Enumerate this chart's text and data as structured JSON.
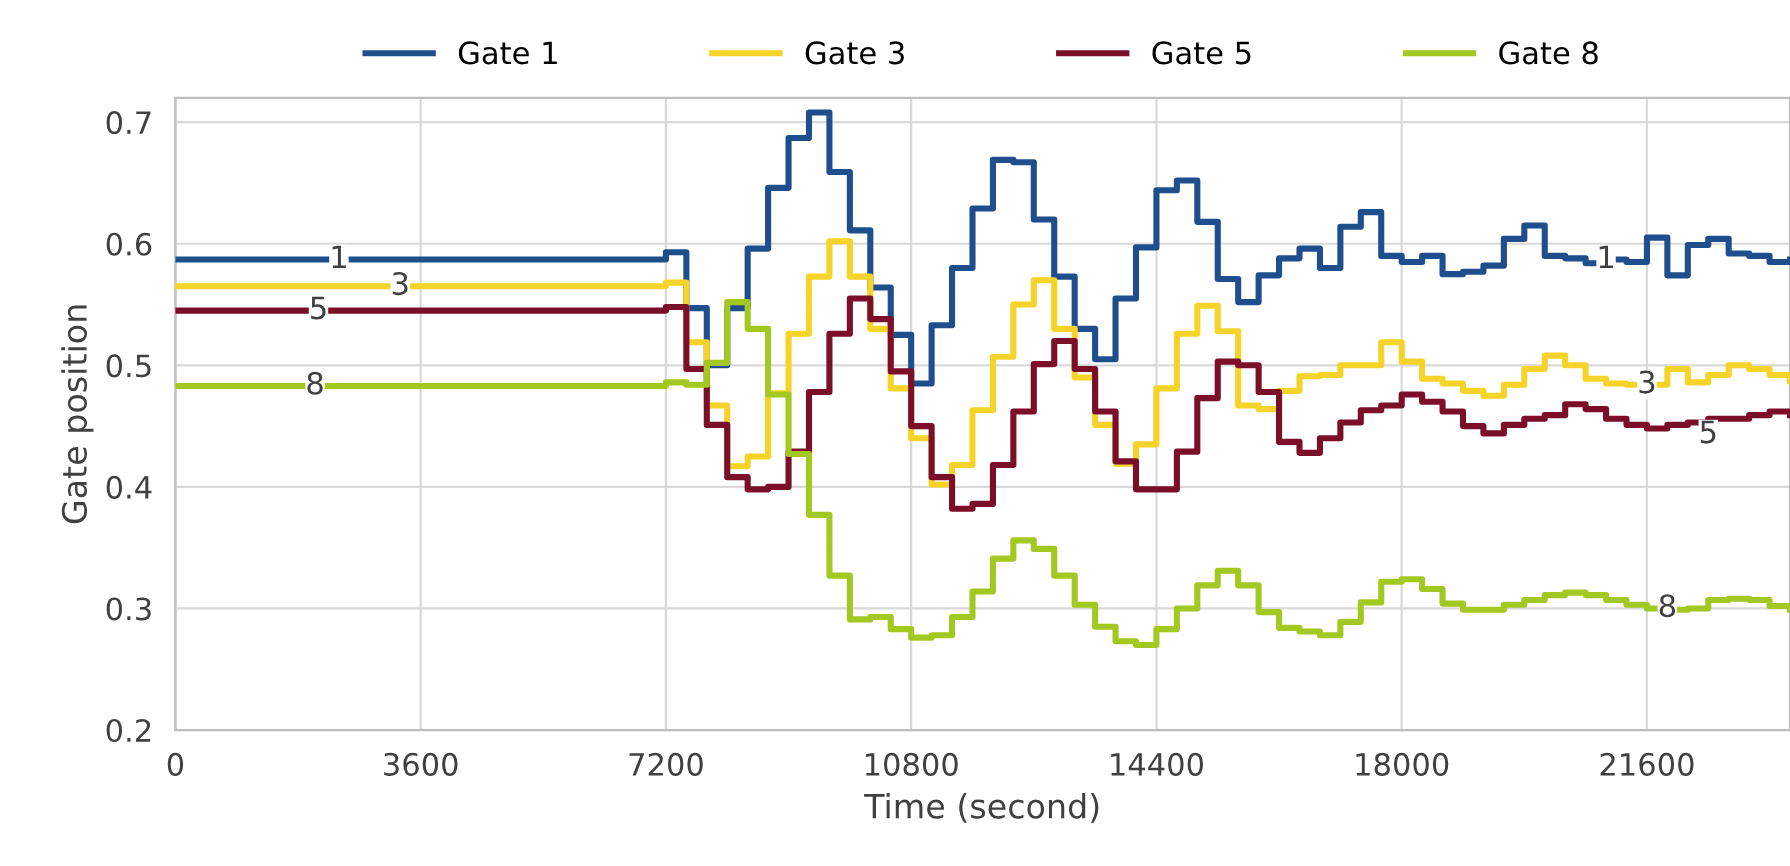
{
  "chart_data": {
    "type": "step",
    "xlabel": "Time (second)",
    "ylabel": "Gate position",
    "x": [
      0,
      7200,
      7500,
      7800,
      8100,
      8400,
      8700,
      9000,
      9300,
      9600,
      9900,
      10200,
      10500,
      10800,
      11100,
      11400,
      11700,
      12000,
      12300,
      12600,
      12900,
      13200,
      13500,
      13800,
      14100,
      14400,
      14700,
      15000,
      15300,
      15600,
      15900,
      16200,
      16500,
      16800,
      17100,
      17400,
      17700,
      18000,
      18300,
      18600,
      18900,
      19200,
      19500,
      19800,
      20100,
      20400,
      20700,
      21000,
      21300,
      21600,
      21900,
      22200,
      22500,
      22800,
      23100,
      23400,
      23700
    ],
    "series": [
      {
        "name": "Gate 1",
        "color": "#1f4e8c",
        "values": [
          0.587,
          0.593,
          0.547,
          0.5,
          0.547,
          0.596,
          0.646,
          0.687,
          0.708,
          0.659,
          0.611,
          0.564,
          0.525,
          0.485,
          0.533,
          0.58,
          0.629,
          0.669,
          0.667,
          0.62,
          0.573,
          0.53,
          0.505,
          0.555,
          0.597,
          0.644,
          0.652,
          0.618,
          0.571,
          0.552,
          0.574,
          0.588,
          0.596,
          0.58,
          0.614,
          0.626,
          0.59,
          0.585,
          0.59,
          0.575,
          0.577,
          0.582,
          0.604,
          0.615,
          0.59,
          0.588,
          0.584,
          0.587,
          0.585,
          0.605,
          0.574,
          0.599,
          0.604,
          0.592,
          0.59,
          0.585,
          0.587
        ]
      },
      {
        "name": "Gate 3",
        "color": "#f5d328",
        "values": [
          0.565,
          0.568,
          0.519,
          0.467,
          0.417,
          0.425,
          0.477,
          0.526,
          0.573,
          0.602,
          0.573,
          0.53,
          0.481,
          0.44,
          0.402,
          0.418,
          0.463,
          0.507,
          0.55,
          0.57,
          0.53,
          0.49,
          0.451,
          0.419,
          0.435,
          0.481,
          0.526,
          0.549,
          0.528,
          0.467,
          0.464,
          0.479,
          0.491,
          0.492,
          0.5,
          0.5,
          0.519,
          0.503,
          0.489,
          0.485,
          0.479,
          0.475,
          0.484,
          0.497,
          0.508,
          0.5,
          0.489,
          0.485,
          0.484,
          0.484,
          0.497,
          0.486,
          0.492,
          0.5,
          0.497,
          0.492,
          0.487
        ]
      },
      {
        "name": "Gate 5",
        "color": "#7b0f2a",
        "values": [
          0.545,
          0.548,
          0.497,
          0.451,
          0.408,
          0.398,
          0.4,
          0.429,
          0.478,
          0.526,
          0.555,
          0.538,
          0.495,
          0.45,
          0.408,
          0.382,
          0.386,
          0.418,
          0.462,
          0.501,
          0.52,
          0.497,
          0.462,
          0.421,
          0.398,
          0.398,
          0.429,
          0.473,
          0.503,
          0.5,
          0.478,
          0.437,
          0.428,
          0.44,
          0.453,
          0.463,
          0.467,
          0.476,
          0.47,
          0.462,
          0.45,
          0.444,
          0.451,
          0.456,
          0.459,
          0.468,
          0.464,
          0.456,
          0.451,
          0.448,
          0.451,
          0.453,
          0.456,
          0.456,
          0.459,
          0.462,
          0.459
        ]
      },
      {
        "name": "Gate 8",
        "color": "#a4c822",
        "values": [
          0.483,
          0.486,
          0.484,
          0.502,
          0.552,
          0.53,
          0.476,
          0.427,
          0.377,
          0.327,
          0.291,
          0.293,
          0.283,
          0.276,
          0.278,
          0.293,
          0.314,
          0.341,
          0.356,
          0.349,
          0.327,
          0.303,
          0.285,
          0.273,
          0.27,
          0.283,
          0.3,
          0.319,
          0.331,
          0.319,
          0.297,
          0.284,
          0.281,
          0.278,
          0.289,
          0.305,
          0.322,
          0.324,
          0.316,
          0.304,
          0.299,
          0.299,
          0.303,
          0.307,
          0.311,
          0.313,
          0.311,
          0.307,
          0.303,
          0.3,
          0.299,
          0.3,
          0.307,
          0.308,
          0.307,
          0.302,
          0.299
        ]
      }
    ],
    "annotations": [
      {
        "text": "1",
        "x": 2400,
        "y": 0.587
      },
      {
        "text": "3",
        "x": 3300,
        "y": 0.565
      },
      {
        "text": "5",
        "x": 2100,
        "y": 0.545
      },
      {
        "text": "8",
        "x": 2050,
        "y": 0.483
      },
      {
        "text": "1",
        "x": 21000,
        "y": 0.587
      },
      {
        "text": "3",
        "x": 21600,
        "y": 0.484
      },
      {
        "text": "5",
        "x": 22500,
        "y": 0.443
      },
      {
        "text": "8",
        "x": 21900,
        "y": 0.3
      }
    ],
    "xlim": [
      0,
      23700
    ],
    "xticks": [
      0,
      3600,
      7200,
      10800,
      14400,
      18000,
      21600
    ],
    "ylim": [
      0.2,
      0.72
    ],
    "yticks": [
      0.2,
      0.3,
      0.4,
      0.5,
      0.6,
      0.7
    ],
    "grid": true,
    "legend": "top",
    "line_style": "solid",
    "marker": "none"
  }
}
